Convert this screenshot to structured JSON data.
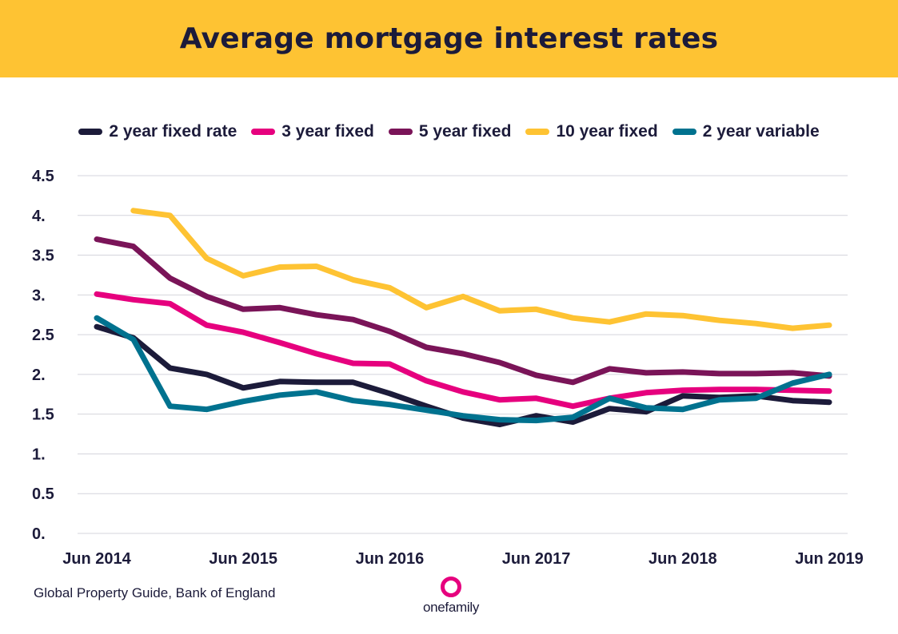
{
  "chart_data": {
    "type": "line",
    "title": "Average mortgage interest rates",
    "x_ticks": [
      "Jun 2014",
      "Jun 2015",
      "Jun 2016",
      "Jun 2017",
      "Jun 2018",
      "Jun 2019"
    ],
    "y_ticks": [
      "0.",
      "0.5",
      "1.",
      "1.5",
      "2.",
      "2.5",
      "3.",
      "3.5",
      "4.",
      "4.5"
    ],
    "ylim": [
      0,
      4.5
    ],
    "grid": true,
    "legend_position": "top",
    "series": [
      {
        "name": "2 year fixed rate",
        "color": "#1c1b3a",
        "points": [
          [
            0,
            2.6
          ],
          [
            1,
            2.46
          ],
          [
            2,
            2.08
          ],
          [
            3,
            2.0
          ],
          [
            4,
            1.83
          ],
          [
            5,
            1.91
          ],
          [
            6,
            1.9
          ],
          [
            7,
            1.9
          ],
          [
            8,
            1.76
          ],
          [
            9,
            1.6
          ],
          [
            10,
            1.45
          ],
          [
            11,
            1.37
          ],
          [
            12,
            1.48
          ],
          [
            13,
            1.4
          ],
          [
            14,
            1.57
          ],
          [
            15,
            1.53
          ],
          [
            16,
            1.73
          ],
          [
            17,
            1.71
          ],
          [
            18,
            1.73
          ],
          [
            19,
            1.67
          ],
          [
            20,
            1.65
          ]
        ]
      },
      {
        "name": "3 year fixed",
        "color": "#e6007e",
        "points": [
          [
            0,
            3.01
          ],
          [
            1,
            2.94
          ],
          [
            2,
            2.89
          ],
          [
            3,
            2.62
          ],
          [
            4,
            2.53
          ],
          [
            5,
            2.4
          ],
          [
            6,
            2.26
          ],
          [
            7,
            2.14
          ],
          [
            8,
            2.13
          ],
          [
            9,
            1.92
          ],
          [
            10,
            1.78
          ],
          [
            11,
            1.68
          ],
          [
            12,
            1.7
          ],
          [
            13,
            1.6
          ],
          [
            14,
            1.7
          ],
          [
            15,
            1.77
          ],
          [
            16,
            1.8
          ],
          [
            17,
            1.81
          ],
          [
            18,
            1.81
          ],
          [
            19,
            1.8
          ],
          [
            20,
            1.79
          ]
        ]
      },
      {
        "name": "5 year fixed",
        "color": "#7a1458",
        "points": [
          [
            0,
            3.7
          ],
          [
            1,
            3.61
          ],
          [
            2,
            3.21
          ],
          [
            3,
            2.98
          ],
          [
            4,
            2.82
          ],
          [
            5,
            2.84
          ],
          [
            6,
            2.75
          ],
          [
            7,
            2.69
          ],
          [
            8,
            2.54
          ],
          [
            9,
            2.34
          ],
          [
            10,
            2.26
          ],
          [
            11,
            2.15
          ],
          [
            12,
            1.99
          ],
          [
            13,
            1.9
          ],
          [
            14,
            2.07
          ],
          [
            15,
            2.02
          ],
          [
            16,
            2.03
          ],
          [
            17,
            2.01
          ],
          [
            18,
            2.01
          ],
          [
            19,
            2.02
          ],
          [
            20,
            1.98
          ]
        ]
      },
      {
        "name": "10 year fixed",
        "color": "#fec333",
        "points": [
          [
            1,
            4.06
          ],
          [
            2,
            4.0
          ],
          [
            3,
            3.46
          ],
          [
            4,
            3.24
          ],
          [
            5,
            3.35
          ],
          [
            6,
            3.36
          ],
          [
            7,
            3.19
          ],
          [
            8,
            3.09
          ],
          [
            9,
            2.84
          ],
          [
            10,
            2.98
          ],
          [
            11,
            2.8
          ],
          [
            12,
            2.82
          ],
          [
            13,
            2.71
          ],
          [
            14,
            2.66
          ],
          [
            15,
            2.76
          ],
          [
            16,
            2.74
          ],
          [
            17,
            2.68
          ],
          [
            18,
            2.64
          ],
          [
            19,
            2.58
          ],
          [
            20,
            2.62
          ]
        ]
      },
      {
        "name": "2 year variable",
        "color": "#00728f",
        "points": [
          [
            0,
            2.71
          ],
          [
            1,
            2.44
          ],
          [
            2,
            1.6
          ],
          [
            3,
            1.56
          ],
          [
            4,
            1.66
          ],
          [
            5,
            1.74
          ],
          [
            6,
            1.78
          ],
          [
            7,
            1.67
          ],
          [
            8,
            1.62
          ],
          [
            9,
            1.55
          ],
          [
            10,
            1.48
          ],
          [
            11,
            1.43
          ],
          [
            12,
            1.42
          ],
          [
            13,
            1.46
          ],
          [
            14,
            1.7
          ],
          [
            15,
            1.58
          ],
          [
            16,
            1.56
          ],
          [
            17,
            1.68
          ],
          [
            18,
            1.7
          ],
          [
            19,
            1.89
          ],
          [
            20,
            2.0
          ]
        ]
      }
    ]
  },
  "footer": {
    "source": "Global Property Guide, Bank of England",
    "logo_text": "onefamily"
  }
}
